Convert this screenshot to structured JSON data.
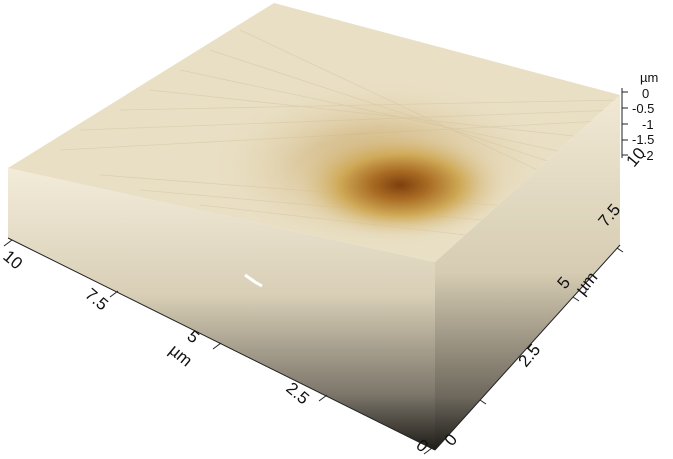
{
  "x_axis": {
    "ticks": [
      "10",
      "7.5",
      "5",
      "2.5",
      "0"
    ],
    "unit": "µm"
  },
  "y_axis": {
    "ticks": [
      "0",
      "2.5",
      "5",
      "7.5",
      "10"
    ],
    "unit": "µm"
  },
  "z_axis": {
    "ticks": [
      "0",
      "-0.5",
      "-1",
      "-1.5",
      "-2"
    ],
    "unit": "µm"
  },
  "colors": {
    "surface": "#e9dfc4",
    "pit_mid": "#c9a24a",
    "pit_deep": "#8a4a12",
    "side_top": "#efe6cf",
    "side_bottom": "#1f1d19"
  }
}
